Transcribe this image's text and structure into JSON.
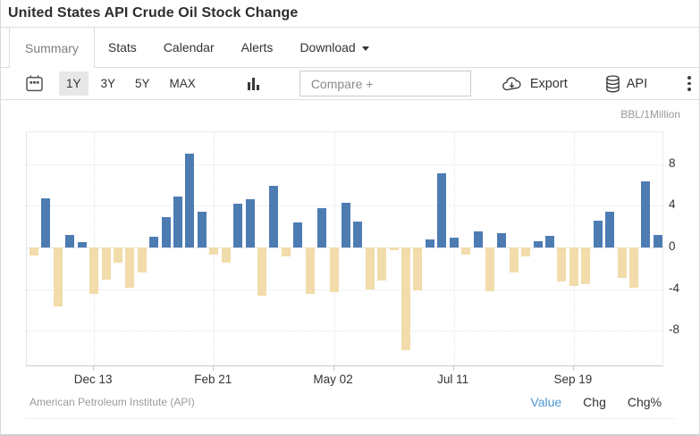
{
  "header": {
    "title": "United States API Crude Oil Stock Change"
  },
  "tabs": [
    {
      "label": "Summary",
      "active": true
    },
    {
      "label": "Stats",
      "active": false
    },
    {
      "label": "Calendar",
      "active": false
    },
    {
      "label": "Alerts",
      "active": false
    },
    {
      "label": "Download",
      "active": false,
      "has_caret": true
    }
  ],
  "toolbar": {
    "ranges": [
      "1Y",
      "3Y",
      "5Y",
      "MAX"
    ],
    "active_range": "1Y",
    "compare_placeholder": "Compare +",
    "export_label": "Export",
    "api_label": "API",
    "icons": [
      "calendar-icon",
      "chart-type-icon",
      "cloud-download-icon",
      "database-icon",
      "kebab-menu-icon"
    ]
  },
  "chart_data": {
    "type": "bar",
    "title": "United States API Crude Oil Stock Change",
    "unit_label": "BBL/1Million",
    "ylim": [
      -11.5,
      11.05
    ],
    "yticks": [
      8,
      4,
      0,
      -4,
      -8
    ],
    "grid": true,
    "positive_color": "#4d7cb3",
    "negative_color": "#f3dcab",
    "x_axis_labels": [
      {
        "label": "Dec 13",
        "index": 5
      },
      {
        "label": "Feb 21",
        "index": 15
      },
      {
        "label": "May 02",
        "index": 25
      },
      {
        "label": "Jul 11",
        "index": 35
      },
      {
        "label": "Sep 19",
        "index": 45
      }
    ],
    "values": [
      -0.8,
      4.7,
      -5.7,
      1.2,
      0.5,
      -4.5,
      -3.1,
      -1.5,
      -3.9,
      -2.4,
      1.0,
      2.9,
      4.9,
      9.0,
      3.4,
      -0.7,
      -1.5,
      4.2,
      4.6,
      -4.6,
      5.9,
      -0.9,
      2.4,
      -4.5,
      3.8,
      -4.3,
      4.3,
      2.5,
      -4.0,
      -3.2,
      -0.3,
      -9.9,
      -4.1,
      0.8,
      7.1,
      0.9,
      -0.7,
      1.5,
      -4.2,
      1.4,
      -2.4,
      -0.9,
      0.6,
      1.1,
      -3.3,
      -3.7,
      -3.5,
      2.6,
      3.4,
      -2.9,
      -3.9,
      6.3,
      1.2
    ]
  },
  "footer": {
    "source": "American Petroleum Institute (API)",
    "modes": [
      {
        "label": "Value",
        "active": true
      },
      {
        "label": "Chg",
        "active": false
      },
      {
        "label": "Chg%",
        "active": false
      }
    ],
    "active_color": "#4f97d4"
  }
}
